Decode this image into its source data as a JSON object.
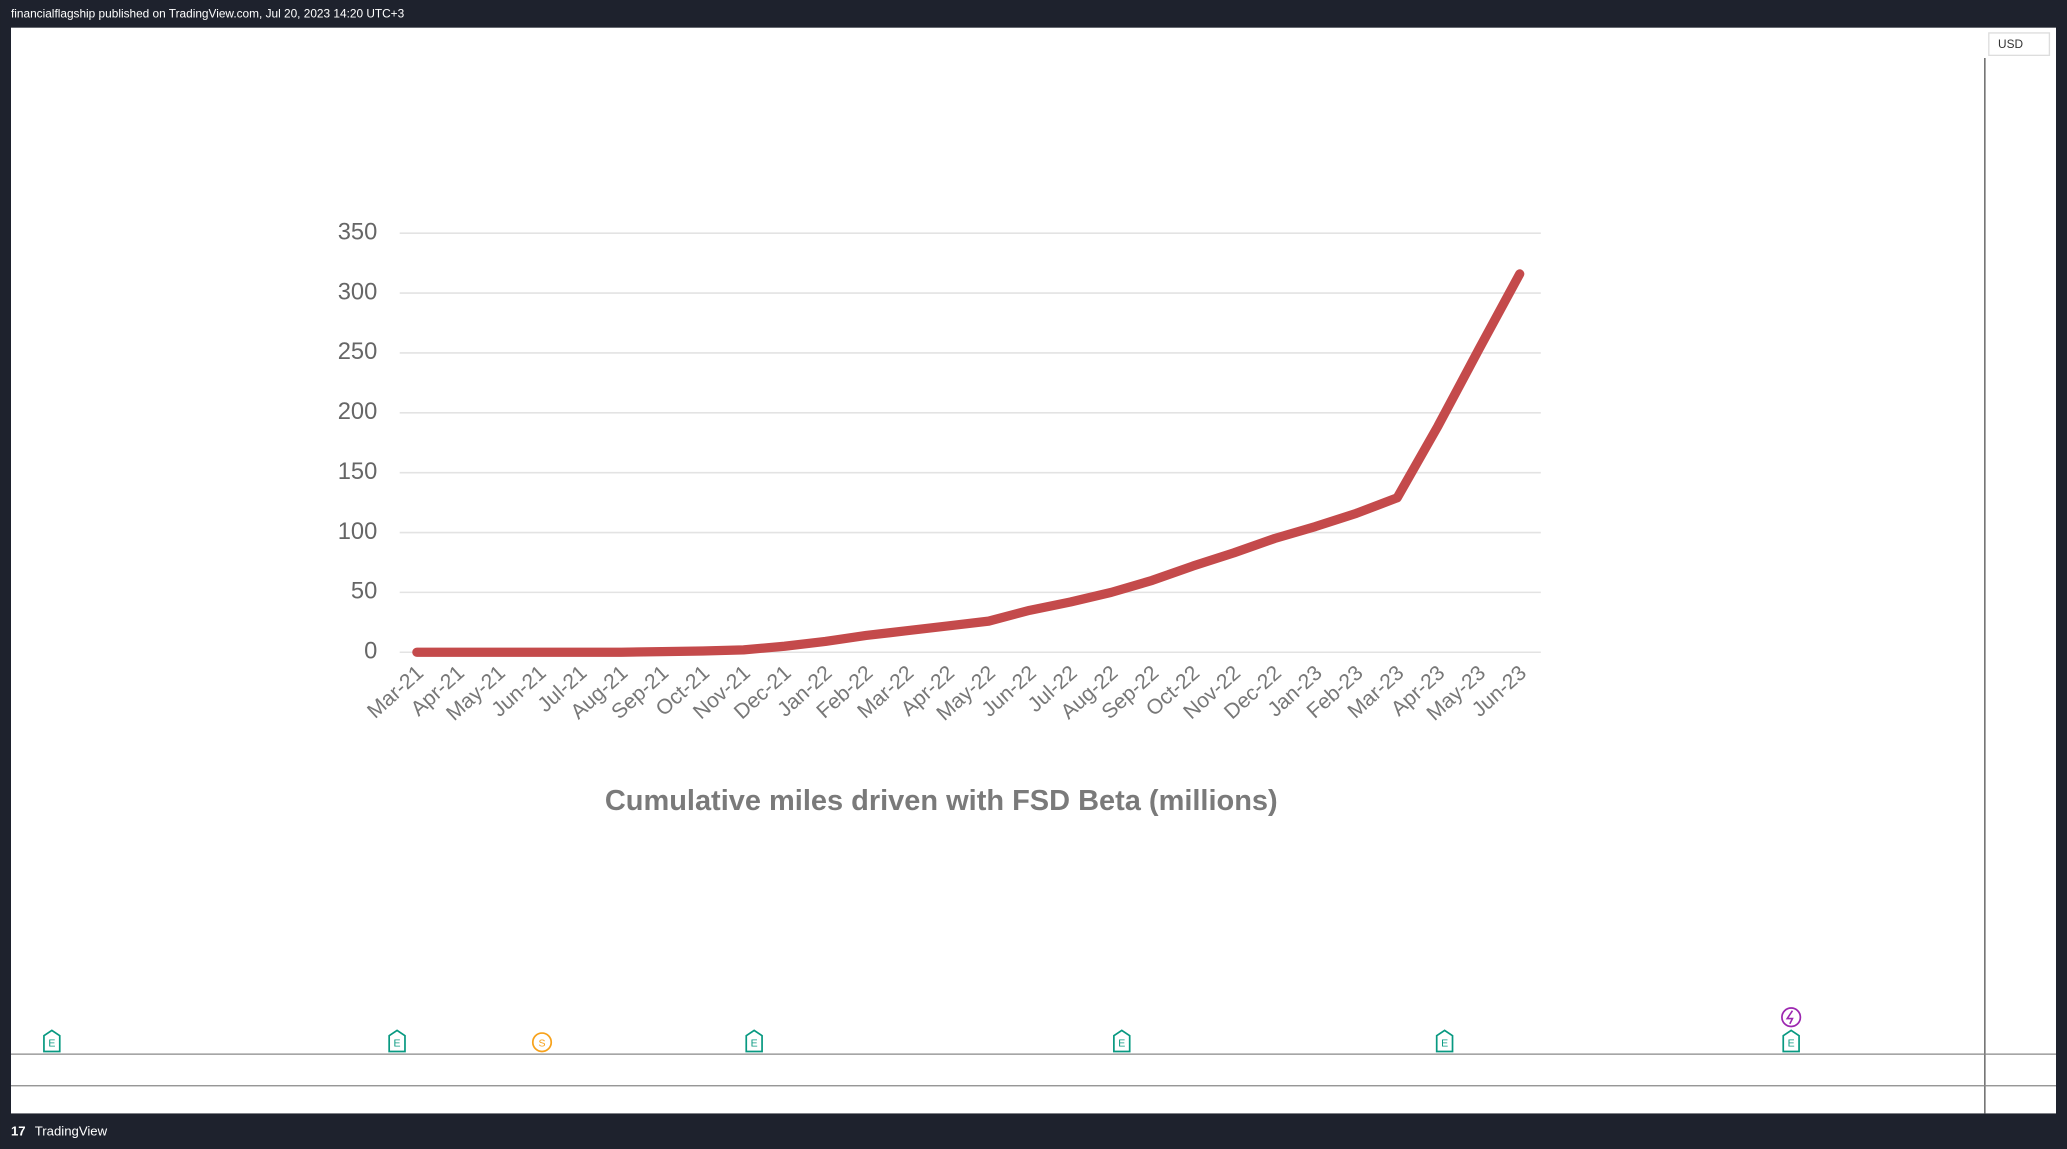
{
  "header": {
    "text": "financialflagship published on TradingView.com, Jul 20, 2023 14:20 UTC+3"
  },
  "currency": "USD",
  "event_markers": [
    "E",
    "E",
    "S",
    "E",
    "E",
    "E",
    "E"
  ],
  "footer": {
    "brand": "TradingView"
  },
  "chart_data": {
    "type": "line",
    "title": "Cumulative miles driven with FSD Beta (millions)",
    "categories": [
      "Mar-21",
      "Apr-21",
      "May-21",
      "Jun-21",
      "Jul-21",
      "Aug-21",
      "Sep-21",
      "Oct-21",
      "Nov-21",
      "Dec-21",
      "Jan-22",
      "Feb-22",
      "Mar-22",
      "Apr-22",
      "May-22",
      "Jun-22",
      "Jul-22",
      "Aug-22",
      "Sep-22",
      "Oct-22",
      "Nov-22",
      "Dec-22",
      "Jan-23",
      "Feb-23",
      "Mar-23",
      "Apr-23",
      "May-23",
      "Jun-23"
    ],
    "series": [
      {
        "color": "#c44a4b",
        "values": [
          0,
          0,
          0,
          0,
          0,
          0,
          0.5,
          1,
          2,
          5,
          9,
          14,
          18,
          22,
          26,
          35,
          42,
          50,
          60,
          72,
          83,
          95,
          105,
          116,
          129,
          189,
          253,
          316
        ]
      }
    ],
    "ylim": [
      0,
      350
    ],
    "yticks": [
      0,
      50,
      100,
      150,
      200,
      250,
      300,
      350
    ],
    "grid": true
  }
}
